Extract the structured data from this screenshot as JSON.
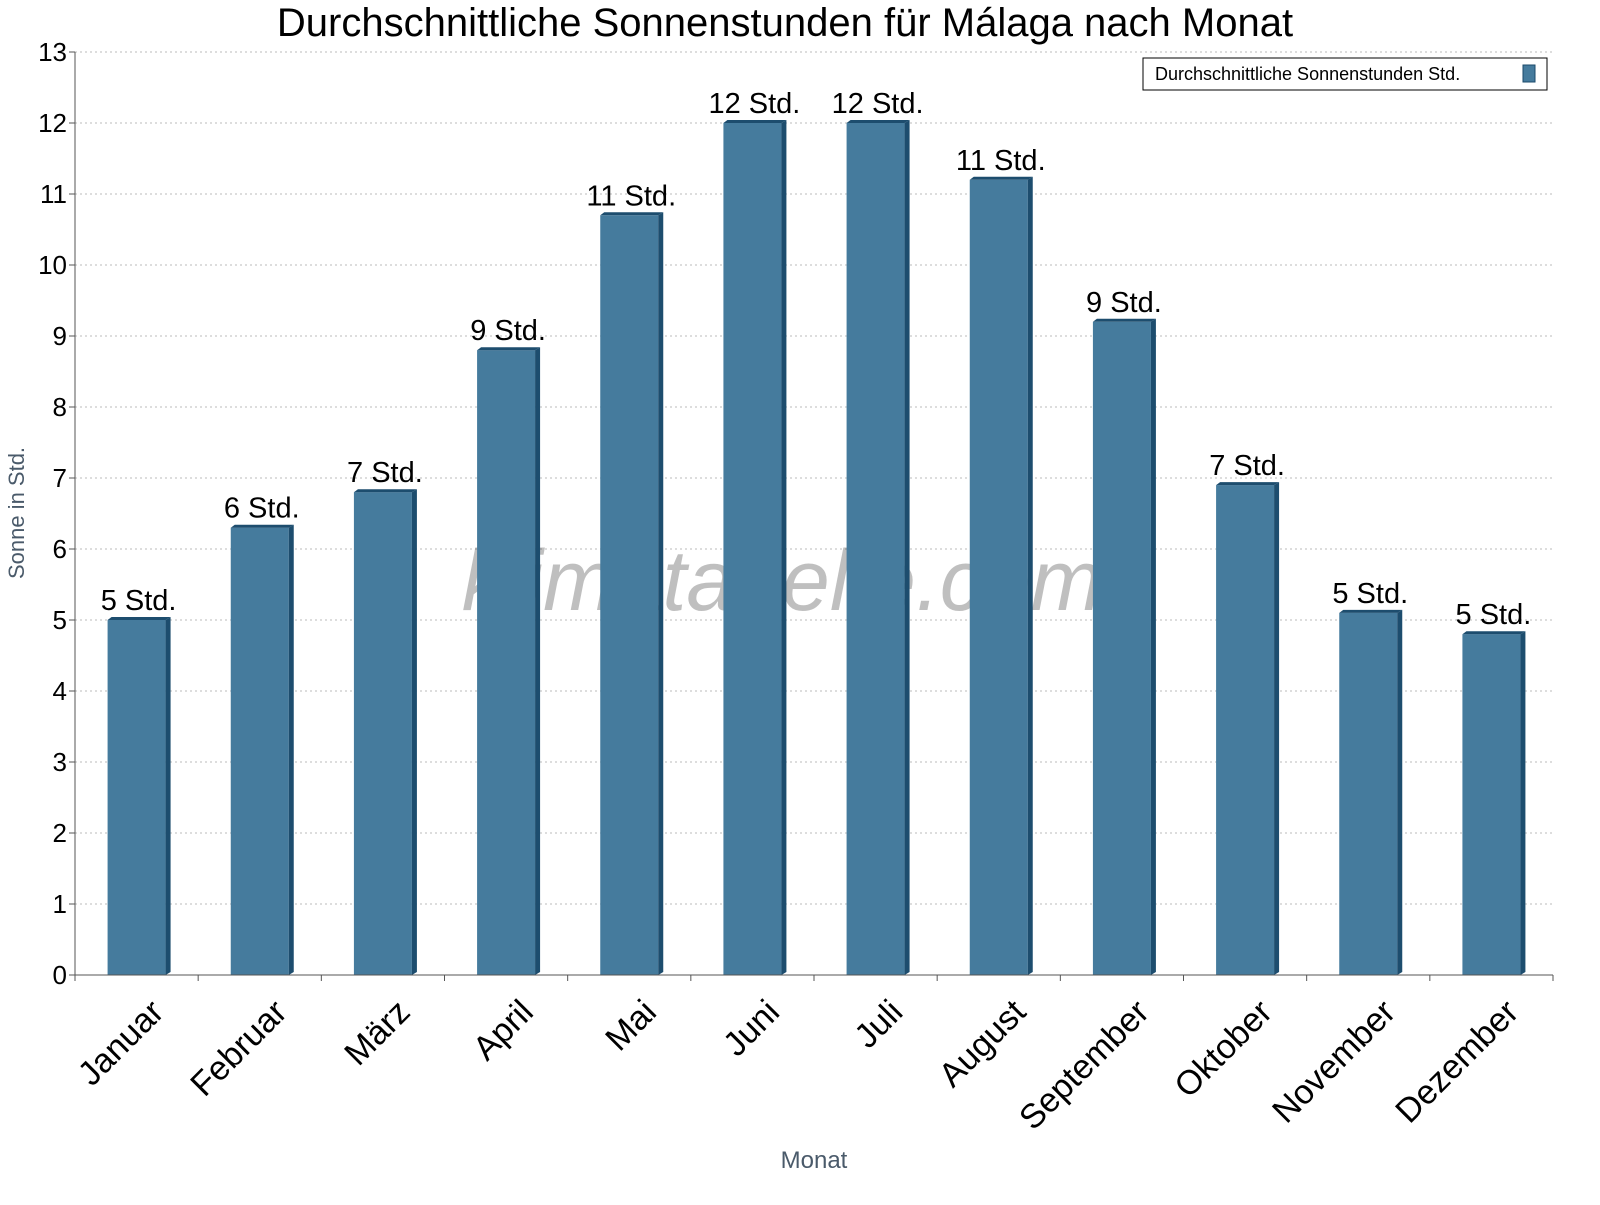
{
  "chart_data": {
    "type": "bar",
    "title": "Durchschnittliche Sonnenstunden für Málaga nach Monat",
    "xlabel": "Monat",
    "ylabel": "Sonne in Std.",
    "ylim": [
      0,
      13
    ],
    "yticks": [
      "0",
      "1",
      "2",
      "3",
      "4",
      "5",
      "6",
      "7",
      "8",
      "9",
      "10",
      "11",
      "12",
      "13"
    ],
    "grid": true,
    "legend_position": "top-right",
    "categories": [
      "Januar",
      "Februar",
      "März",
      "April",
      "Mai",
      "Juni",
      "Juli",
      "August",
      "September",
      "Oktober",
      "November",
      "Dezember"
    ],
    "series": [
      {
        "name": "Durchschnittliche Sonnenstunden Std.",
        "color": "#457b9d",
        "values": [
          5.0,
          6.3,
          6.8,
          8.8,
          10.7,
          12.0,
          12.0,
          11.2,
          9.2,
          6.9,
          5.1,
          4.8
        ],
        "data_labels": [
          "5 Std.",
          "6 Std.",
          "7 Std.",
          "9 Std.",
          "11 Std.",
          "12 Std.",
          "12 Std.",
          "11 Std.",
          "9 Std.",
          "7 Std.",
          "5 Std.",
          "5 Std."
        ]
      }
    ],
    "watermark": "klimatabelle.com"
  }
}
